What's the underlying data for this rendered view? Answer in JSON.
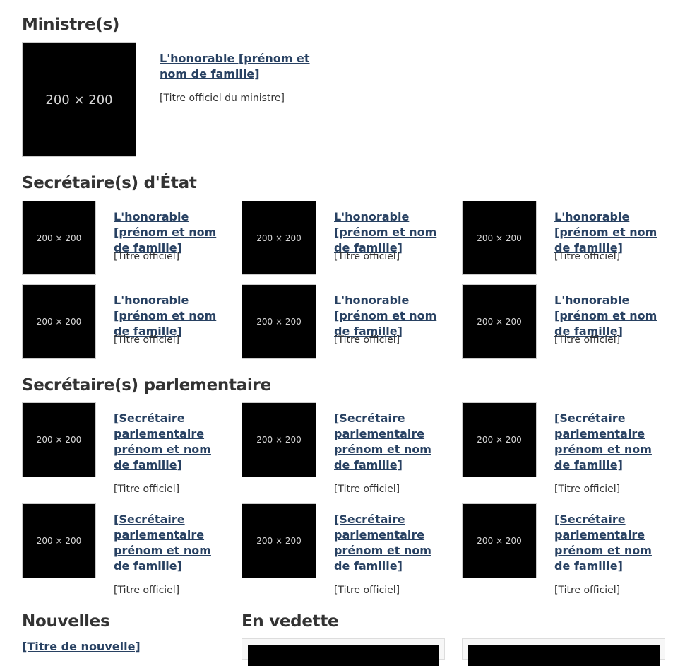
{
  "ministers": {
    "heading": "Ministre(s)",
    "items": [
      {
        "placeholder": "200 × 200",
        "name": "L'honorable [prénom et nom de famille]",
        "title": "[Titre officiel du ministre]"
      }
    ]
  },
  "secretaries_of_state": {
    "heading": "Secrétaire(s) d'État",
    "items": [
      {
        "placeholder": "200 × 200",
        "name": "L'honorable [prénom et nom de famille]",
        "title": "[Titre officiel]"
      },
      {
        "placeholder": "200 × 200",
        "name": "L'honorable [prénom et nom de famille]",
        "title": "[Titre officiel]"
      },
      {
        "placeholder": "200 × 200",
        "name": "L'honorable [prénom et nom de famille]",
        "title": "[Titre officiel]"
      },
      {
        "placeholder": "200 × 200",
        "name": "L'honorable [prénom et nom de famille]",
        "title": "[Titre officiel]"
      },
      {
        "placeholder": "200 × 200",
        "name": "L'honorable [prénom et nom de famille]",
        "title": "[Titre officiel]"
      },
      {
        "placeholder": "200 × 200",
        "name": "L'honorable [prénom et nom de famille]",
        "title": "[Titre officiel]"
      }
    ]
  },
  "parliamentary_secretaries": {
    "heading": "Secrétaire(s) parlementaire",
    "items": [
      {
        "placeholder": "200 × 200",
        "name": "[Secrétaire parlementaire prénom et nom de famille]",
        "title": "[Titre officiel]"
      },
      {
        "placeholder": "200 × 200",
        "name": "[Secrétaire parlementaire prénom et nom de famille]",
        "title": "[Titre officiel]"
      },
      {
        "placeholder": "200 × 200",
        "name": "[Secrétaire parlementaire prénom et nom de famille]",
        "title": "[Titre officiel]"
      },
      {
        "placeholder": "200 × 200",
        "name": "[Secrétaire parlementaire prénom et nom de famille]",
        "title": "[Titre officiel]"
      },
      {
        "placeholder": "200 × 200",
        "name": "[Secrétaire parlementaire prénom et nom de famille]",
        "title": "[Titre officiel]"
      },
      {
        "placeholder": "200 × 200",
        "name": "[Secrétaire parlementaire prénom et nom de famille]",
        "title": "[Titre officiel]"
      }
    ]
  },
  "news": {
    "heading": "Nouvelles",
    "first_link": "[Titre de nouvelle]"
  },
  "featured": {
    "heading": "En vedette"
  }
}
